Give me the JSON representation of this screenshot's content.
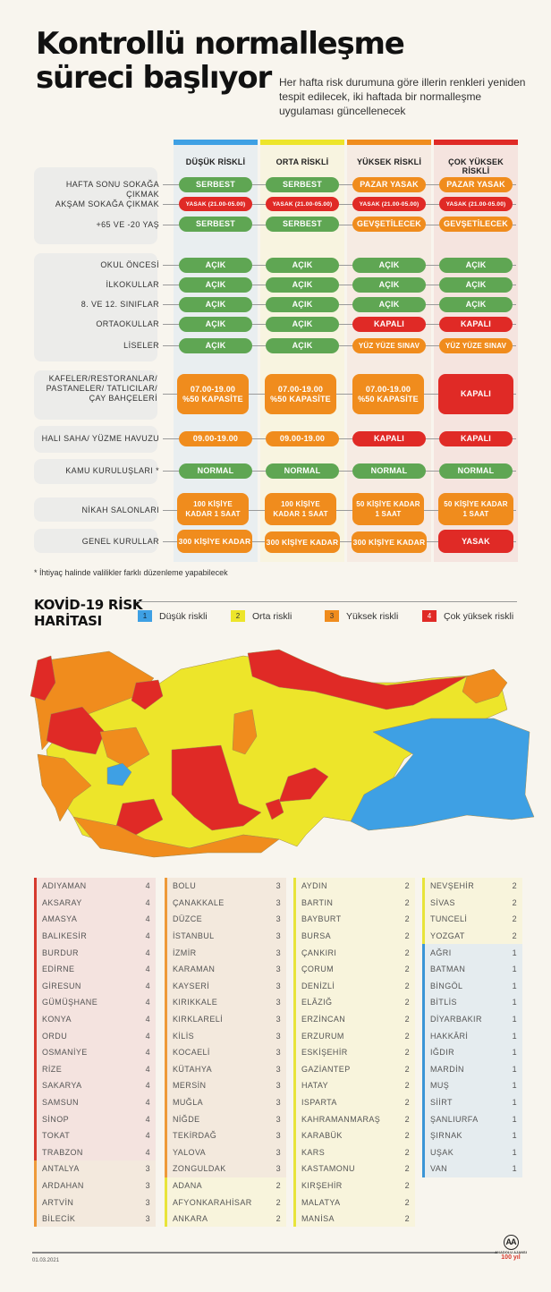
{
  "header": {
    "title_line1": "Kontrollü normalleşme",
    "title_line2": "süreci başlıyor",
    "subtitle": "Her hafta risk durumuna göre illerin renkleri yeniden tespit edilecek, iki haftada bir normalleşme uygulaması güncellenecek"
  },
  "colors": {
    "low": "#3ea0e4",
    "medium": "#ede52a",
    "high": "#f08c1d",
    "very_high": "#e02a26",
    "pill_green": "#5fa653"
  },
  "columns": [
    {
      "label": "DÜŞÜK RİSKLİ",
      "bar": "#3ea0e4",
      "bg": "#e9eef0"
    },
    {
      "label": "ORTA RİSKLİ",
      "bar": "#ede52a",
      "bg": "#f8f4e0"
    },
    {
      "label": "YÜKSEK RİSKLİ",
      "bar": "#f08c1d",
      "bg": "#f6ebe3"
    },
    {
      "label": "ÇOK YÜKSEK RİSKLİ",
      "bar": "#e02a26",
      "bg": "#f5e4df"
    }
  ],
  "rows": [
    {
      "label": "HAFTA SONU SOKAĞA ÇIKMAK",
      "values": [
        "SERBEST",
        "SERBEST",
        "PAZAR  YASAK",
        "PAZAR  YASAK"
      ]
    },
    {
      "label": "AKŞAM SOKAĞA ÇIKMAK",
      "values": [
        "YASAK (21.00-05.00)",
        "YASAK (21.00-05.00)",
        "YASAK (21.00-05.00)",
        "YASAK (21.00-05.00)"
      ]
    },
    {
      "label": "+65 VE -20 YAŞ",
      "values": [
        "SERBEST",
        "SERBEST",
        "GEVŞETİLECEK",
        "GEVŞETİLECEK"
      ]
    },
    {
      "label": "OKUL ÖNCESİ",
      "values": [
        "AÇIK",
        "AÇIK",
        "AÇIK",
        "AÇIK"
      ]
    },
    {
      "label": "İLKOKULLAR",
      "values": [
        "AÇIK",
        "AÇIK",
        "AÇIK",
        "AÇIK"
      ]
    },
    {
      "label": "8. VE 12. SINIFLAR",
      "values": [
        "AÇIK",
        "AÇIK",
        "AÇIK",
        "AÇIK"
      ]
    },
    {
      "label": "ORTAOKULLAR",
      "values": [
        "AÇIK",
        "AÇIK",
        "KAPALI",
        "KAPALI"
      ]
    },
    {
      "label": "LİSELER",
      "values": [
        "AÇIK",
        "AÇIK",
        "YÜZ YÜZE SINAV",
        "YÜZ YÜZE SINAV"
      ]
    },
    {
      "label": "KAFELER/RESTORANLAR/ PASTANELER/ TATLICILAR/ ÇAY BAHÇELERİ",
      "values": [
        "07.00-19.00 %50 KAPASİTE",
        "07.00-19.00 %50 KAPASİTE",
        "07.00-19.00 %50 KAPASİTE",
        "KAPALI"
      ]
    },
    {
      "label": "HALI SAHA/ YÜZME HAVUZU",
      "values": [
        "09.00-19.00",
        "09.00-19.00",
        "KAPALI",
        "KAPALI"
      ]
    },
    {
      "label": "KAMU KURULUŞLARI *",
      "values": [
        "NORMAL",
        "NORMAL",
        "NORMAL",
        "NORMAL"
      ]
    },
    {
      "label": "NİKAH SALONLARI",
      "values": [
        "100 KİŞİYE KADAR 1 SAAT",
        "100 KİŞİYE KADAR 1 SAAT",
        "50 KİŞİYE KADAR 1 SAAT",
        "50 KİŞİYE KADAR 1 SAAT"
      ]
    },
    {
      "label": "GENEL KURULLAR",
      "values": [
        "300 KİŞİYE KADAR",
        "300 KİŞİYE KADAR",
        "300 KİŞİYE KADAR",
        "YASAK"
      ]
    }
  ],
  "footnote": "* İhtiyaç halinde valilikler farklı düzenleme yapabilecek",
  "map": {
    "title_line1": "KOVİD-19 RİSK",
    "title_line2": "HARİTASI",
    "legend": [
      {
        "num": "1",
        "label": "Düşük riskli",
        "color": "#3ea0e4"
      },
      {
        "num": "2",
        "label": "Orta riskli",
        "color": "#ede52a"
      },
      {
        "num": "3",
        "label": "Yüksek riskli",
        "color": "#f08c1d"
      },
      {
        "num": "4",
        "label": "Çok yüksek riskli",
        "color": "#e02a26"
      }
    ]
  },
  "provinces": [
    [
      {
        "name": "ADIYAMAN",
        "level": "4"
      },
      {
        "name": "AKSARAY",
        "level": "4"
      },
      {
        "name": "AMASYA",
        "level": "4"
      },
      {
        "name": "BALIKESİR",
        "level": "4"
      },
      {
        "name": "BURDUR",
        "level": "4"
      },
      {
        "name": "EDİRNE",
        "level": "4"
      },
      {
        "name": "GİRESUN",
        "level": "4"
      },
      {
        "name": "GÜMÜŞHANE",
        "level": "4"
      },
      {
        "name": "KONYA",
        "level": "4"
      },
      {
        "name": "ORDU",
        "level": "4"
      },
      {
        "name": "OSMANİYE",
        "level": "4"
      },
      {
        "name": "RİZE",
        "level": "4"
      },
      {
        "name": "SAKARYA",
        "level": "4"
      },
      {
        "name": "SAMSUN",
        "level": "4"
      },
      {
        "name": "SİNOP",
        "level": "4"
      },
      {
        "name": "TOKAT",
        "level": "4"
      },
      {
        "name": "TRABZON",
        "level": "4"
      },
      {
        "name": "ANTALYA",
        "level": "3"
      },
      {
        "name": "ARDAHAN",
        "level": "3"
      },
      {
        "name": "ARTVİN",
        "level": "3"
      },
      {
        "name": "BİLECİK",
        "level": "3"
      }
    ],
    [
      {
        "name": "BOLU",
        "level": "3"
      },
      {
        "name": "ÇANAKKALE",
        "level": "3"
      },
      {
        "name": "DÜZCE",
        "level": "3"
      },
      {
        "name": "İSTANBUL",
        "level": "3"
      },
      {
        "name": "İZMİR",
        "level": "3"
      },
      {
        "name": "KARAMAN",
        "level": "3"
      },
      {
        "name": "KAYSERİ",
        "level": "3"
      },
      {
        "name": "KIRIKKALE",
        "level": "3"
      },
      {
        "name": "KIRKLARELİ",
        "level": "3"
      },
      {
        "name": "KİLİS",
        "level": "3"
      },
      {
        "name": "KOCAELİ",
        "level": "3"
      },
      {
        "name": "KÜTAHYA",
        "level": "3"
      },
      {
        "name": "MERSİN",
        "level": "3"
      },
      {
        "name": "MUĞLA",
        "level": "3"
      },
      {
        "name": "NİĞDE",
        "level": "3"
      },
      {
        "name": "TEKİRDAĞ",
        "level": "3"
      },
      {
        "name": "YALOVA",
        "level": "3"
      },
      {
        "name": "ZONGULDAK",
        "level": "3"
      },
      {
        "name": "ADANA",
        "level": "2"
      },
      {
        "name": "AFYONKARAHİSAR",
        "level": "2"
      },
      {
        "name": "ANKARA",
        "level": "2"
      }
    ],
    [
      {
        "name": "AYDIN",
        "level": "2"
      },
      {
        "name": "BARTIN",
        "level": "2"
      },
      {
        "name": "BAYBURT",
        "level": "2"
      },
      {
        "name": "BURSA",
        "level": "2"
      },
      {
        "name": "ÇANKIRI",
        "level": "2"
      },
      {
        "name": "ÇORUM",
        "level": "2"
      },
      {
        "name": "DENİZLİ",
        "level": "2"
      },
      {
        "name": "ELÂZIĞ",
        "level": "2"
      },
      {
        "name": "ERZİNCAN",
        "level": "2"
      },
      {
        "name": "ERZURUM",
        "level": "2"
      },
      {
        "name": "ESKİŞEHİR",
        "level": "2"
      },
      {
        "name": "GAZİANTEP",
        "level": "2"
      },
      {
        "name": "HATAY",
        "level": "2"
      },
      {
        "name": "ISPARTA",
        "level": "2"
      },
      {
        "name": "KAHRAMANMARAŞ",
        "level": "2"
      },
      {
        "name": "KARABÜK",
        "level": "2"
      },
      {
        "name": "KARS",
        "level": "2"
      },
      {
        "name": "KASTAMONU",
        "level": "2"
      },
      {
        "name": "KIRŞEHİR",
        "level": "2"
      },
      {
        "name": "MALATYA",
        "level": "2"
      },
      {
        "name": "MANİSA",
        "level": "2"
      }
    ],
    [
      {
        "name": "NEVŞEHİR",
        "level": "2"
      },
      {
        "name": "SİVAS",
        "level": "2"
      },
      {
        "name": "TUNCELİ",
        "level": "2"
      },
      {
        "name": "YOZGAT",
        "level": "2"
      },
      {
        "name": "AĞRI",
        "level": "1"
      },
      {
        "name": "BATMAN",
        "level": "1"
      },
      {
        "name": "BİNGÖL",
        "level": "1"
      },
      {
        "name": "BİTLİS",
        "level": "1"
      },
      {
        "name": "DİYARBAKIR",
        "level": "1"
      },
      {
        "name": "HAKKÂRİ",
        "level": "1"
      },
      {
        "name": "IĞDIR",
        "level": "1"
      },
      {
        "name": "MARDİN",
        "level": "1"
      },
      {
        "name": "MUŞ",
        "level": "1"
      },
      {
        "name": "SİİRT",
        "level": "1"
      },
      {
        "name": "ŞANLIURFA",
        "level": "1"
      },
      {
        "name": "ŞIRNAK",
        "level": "1"
      },
      {
        "name": "UŞAK",
        "level": "1"
      },
      {
        "name": "VAN",
        "level": "1"
      }
    ]
  ],
  "footer": {
    "date": "01.03.2021",
    "logo_mark": "AA",
    "logo_name": "ANADOLU AJANSI",
    "logo_year": "100 yıl"
  }
}
